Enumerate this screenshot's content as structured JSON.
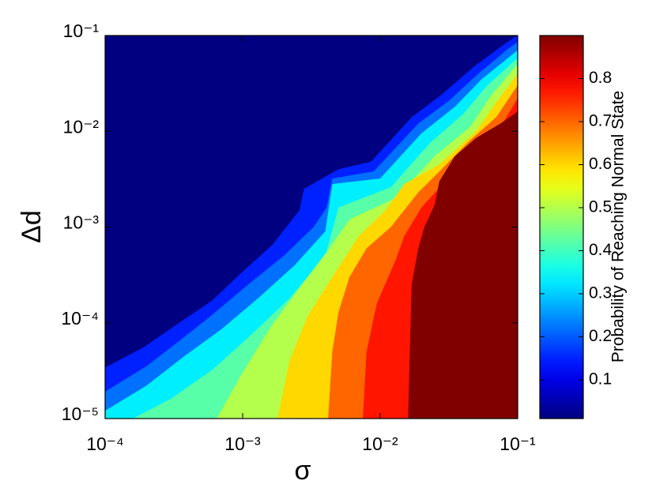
{
  "chart_data": {
    "type": "contour",
    "xlabel": "σ",
    "ylabel": "Δd",
    "colorbar_label": "Probability of Reaching Normal State",
    "xscale": "log",
    "yscale": "log",
    "colormap": "jet",
    "xlim": [
      0.0001,
      0.1
    ],
    "ylim": [
      1e-05,
      0.1
    ],
    "clim": [
      0.01,
      0.9
    ],
    "xticks": [
      {
        "value": 0.0001,
        "label": "10⁻⁴"
      },
      {
        "value": 0.001,
        "label": "10⁻³"
      },
      {
        "value": 0.01,
        "label": "10⁻²"
      },
      {
        "value": 0.1,
        "label": "10⁻¹"
      }
    ],
    "yticks": [
      {
        "value": 1e-05,
        "label": "10⁻⁵"
      },
      {
        "value": 0.0001,
        "label": "10⁻⁴"
      },
      {
        "value": 0.001,
        "label": "10⁻³"
      },
      {
        "value": 0.01,
        "label": "10⁻²"
      },
      {
        "value": 0.1,
        "label": "10⁻¹"
      }
    ],
    "cticks": [
      0.1,
      0.2,
      0.3,
      0.4,
      0.5,
      0.6,
      0.7,
      0.8
    ],
    "contours": [
      {
        "level": 0.15,
        "x": [
          0.0001,
          0.00019,
          0.00034,
          0.0006,
          0.001,
          0.00165,
          0.0026,
          0.0028,
          0.005,
          0.0086,
          0.017,
          0.028,
          0.048,
          0.082,
          0.1
        ],
        "y": [
          3.4e-05,
          5.5e-05,
          9.8e-05,
          0.00017,
          0.00034,
          0.00065,
          0.0015,
          0.0025,
          0.004,
          0.0048,
          0.014,
          0.024,
          0.047,
          0.083,
          0.1
        ]
      },
      {
        "level": 0.22,
        "x": [
          0.0001,
          0.0002,
          0.00035,
          0.0006,
          0.0011,
          0.002,
          0.0033,
          0.0041,
          0.0045,
          0.009,
          0.019,
          0.032,
          0.052,
          0.085,
          0.1
        ],
        "y": [
          1.9e-05,
          3.5e-05,
          6.5e-05,
          0.00012,
          0.00025,
          0.0005,
          0.001,
          0.0016,
          0.0032,
          0.0038,
          0.012,
          0.021,
          0.04,
          0.072,
          0.085
        ]
      },
      {
        "level": 0.33,
        "x": [
          0.0001,
          0.0002,
          0.00038,
          0.0007,
          0.0013,
          0.0024,
          0.004,
          0.0045,
          0.01,
          0.02,
          0.035,
          0.055,
          0.1
        ],
        "y": [
          1.2e-05,
          2.2e-05,
          4.5e-05,
          8.5e-05,
          0.00018,
          0.0004,
          0.0009,
          0.0028,
          0.0032,
          0.0095,
          0.018,
          0.035,
          0.07
        ]
      },
      {
        "level": 0.42,
        "x": [
          0.00016,
          0.0003,
          0.0006,
          0.0011,
          0.0022,
          0.004,
          0.005,
          0.012,
          0.023,
          0.04,
          0.06,
          0.1
        ],
        "y": [
          1e-05,
          1.6e-05,
          3.2e-05,
          7e-05,
          0.00018,
          0.0005,
          0.0016,
          0.0026,
          0.0075,
          0.015,
          0.03,
          0.058
        ]
      },
      {
        "level": 0.5,
        "x": [
          0.00065,
          0.001,
          0.0016,
          0.0027,
          0.0043,
          0.006,
          0.013,
          0.025,
          0.045,
          0.065,
          0.1
        ],
        "y": [
          1e-05,
          3e-05,
          9e-05,
          0.00025,
          0.0006,
          0.0012,
          0.002,
          0.0055,
          0.011,
          0.024,
          0.05
        ]
      },
      {
        "level": 0.6,
        "x": [
          0.0018,
          0.0022,
          0.003,
          0.0045,
          0.007,
          0.011,
          0.015,
          0.027,
          0.05,
          0.07,
          0.1
        ],
        "y": [
          1e-05,
          4e-05,
          0.00012,
          0.0003,
          0.0008,
          0.0015,
          0.0028,
          0.0045,
          0.01,
          0.02,
          0.04
        ]
      },
      {
        "level": 0.7,
        "x": [
          0.0042,
          0.0045,
          0.005,
          0.006,
          0.008,
          0.012,
          0.019,
          0.028,
          0.045,
          0.07,
          0.1
        ],
        "y": [
          1e-05,
          5e-05,
          0.00013,
          0.0003,
          0.0006,
          0.001,
          0.0023,
          0.004,
          0.008,
          0.014,
          0.03
        ]
      },
      {
        "level": 0.77,
        "x": [
          0.0075,
          0.008,
          0.0095,
          0.013,
          0.015,
          0.02,
          0.033,
          0.05,
          0.075,
          0.1
        ],
        "y": [
          1e-05,
          5e-05,
          0.00016,
          0.00045,
          0.0008,
          0.0016,
          0.0035,
          0.0065,
          0.011,
          0.022
        ]
      },
      {
        "level": 0.9,
        "x": [
          0.016,
          0.0165,
          0.017,
          0.019,
          0.021,
          0.025,
          0.027,
          0.035,
          0.05,
          0.075,
          0.1
        ],
        "y": [
          1e-05,
          5e-05,
          0.00025,
          0.0006,
          0.001,
          0.0017,
          0.003,
          0.0055,
          0.0085,
          0.012,
          0.016
        ]
      }
    ]
  }
}
